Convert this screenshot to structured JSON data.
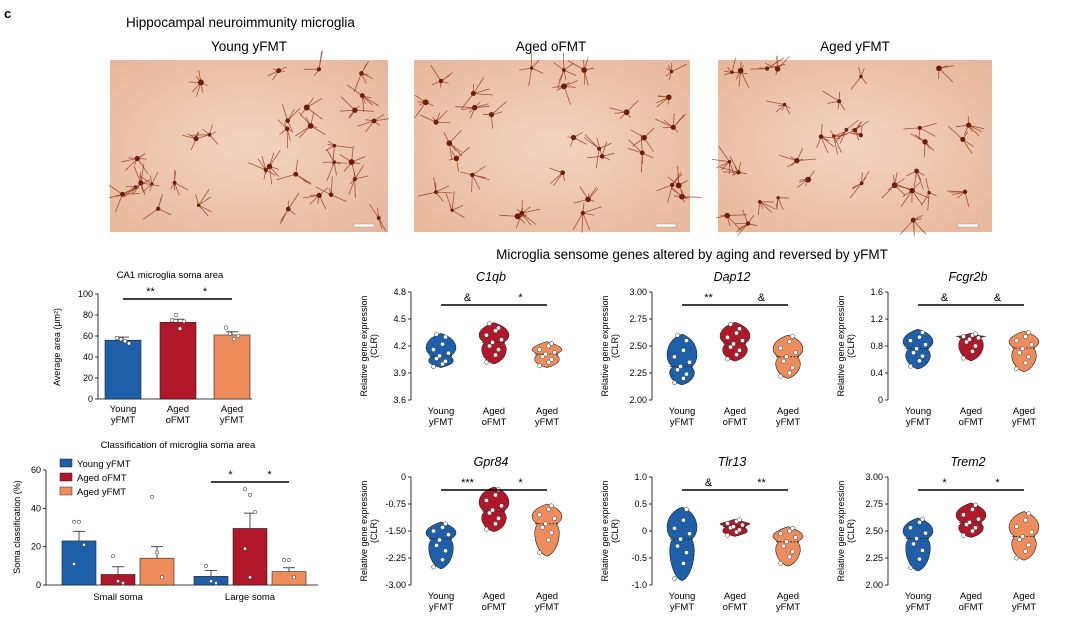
{
  "panel_label": "c",
  "histology": {
    "title": "Hippocampal neuroimmunity microglia",
    "labels": [
      "Young yFMT",
      "Aged oFMT",
      "Aged yFMT"
    ]
  },
  "sensome_title": "Microglia sensome genes altered by aging and reversed by yFMT",
  "colors": {
    "young_yFMT": "#1d5fa8",
    "aged_oFMT": "#b0182a",
    "aged_yFMT": "#ef8c5c"
  },
  "chart_data": [
    {
      "id": "soma_area",
      "type": "bar",
      "title": "CA1 microglia soma area",
      "ylabel": "Average area (μm²)",
      "ylim": [
        0,
        100
      ],
      "yticks": [
        "0",
        "20",
        "40",
        "60",
        "80",
        "100"
      ],
      "categories": [
        "Young yFMT",
        "Aged oFMT",
        "Aged yFMT"
      ],
      "values": [
        56,
        73,
        61
      ],
      "errors": [
        3,
        3,
        3
      ],
      "points": [
        [
          58,
          57,
          55,
          53
        ],
        [
          75,
          80,
          67,
          74
        ],
        [
          68,
          62,
          57,
          60
        ]
      ],
      "significance": [
        {
          "from": 0,
          "to": 1,
          "label": "**"
        },
        {
          "from": 1,
          "to": 2,
          "label": "*"
        }
      ]
    },
    {
      "id": "soma_class",
      "type": "bar",
      "title": "Classification of microglia soma area",
      "ylabel": "Soma classification (%)",
      "ylim": [
        0,
        60
      ],
      "yticks": [
        "0",
        "20",
        "40",
        "60"
      ],
      "groups": [
        "Small soma",
        "Large soma"
      ],
      "legend": [
        "Young yFMT",
        "Aged oFMT",
        "Aged yFMT"
      ],
      "series": [
        {
          "name": "Young yFMT",
          "values": [
            23,
            4.5
          ],
          "errors": [
            5,
            3
          ]
        },
        {
          "name": "Aged oFMT",
          "values": [
            5.5,
            29.5
          ],
          "errors": [
            4,
            8
          ]
        },
        {
          "name": "Aged yFMT",
          "values": [
            14,
            7
          ],
          "errors": [
            6,
            2
          ]
        }
      ],
      "points": [
        [
          [
            33,
            33,
            21,
            11
          ],
          [
            10,
            2,
            1
          ]
        ],
        [
          [
            15,
            2,
            1
          ],
          [
            50,
            47,
            38,
            19,
            4
          ]
        ],
        [
          [
            46,
            17,
            4
          ],
          [
            13,
            13,
            4
          ]
        ]
      ],
      "significance": [
        {
          "group": 1,
          "from": 0,
          "to": 1,
          "label": "*"
        },
        {
          "group": 1,
          "from": 1,
          "to": 2,
          "label": "*"
        }
      ]
    },
    {
      "id": "C1qb",
      "type": "violin",
      "title": "C1qb",
      "ylabel": "Relative gene expression (CLR)",
      "ylim": [
        3.6,
        4.8
      ],
      "yticks": [
        "3.6",
        "3.9",
        "4.2",
        "4.5",
        "4.8"
      ],
      "categories": [
        "Young yFMT",
        "Aged oFMT",
        "Aged yFMT"
      ],
      "series": [
        {
          "name": "Young yFMT",
          "min": 3.96,
          "max": 4.34,
          "median": 4.09,
          "points": [
            3.97,
            4.0,
            4.03,
            4.06,
            4.09,
            4.12,
            4.16,
            4.22,
            4.3,
            4.33
          ]
        },
        {
          "name": "Aged oFMT",
          "min": 4.0,
          "max": 4.46,
          "median": 4.24,
          "points": [
            4.02,
            4.1,
            4.16,
            4.2,
            4.24,
            4.27,
            4.32,
            4.37,
            4.4,
            4.45
          ]
        },
        {
          "name": "Aged yFMT",
          "min": 3.96,
          "max": 4.25,
          "median": 4.11,
          "points": [
            3.98,
            4.02,
            4.05,
            4.08,
            4.11,
            4.13,
            4.16,
            4.2,
            4.23
          ]
        }
      ],
      "significance": [
        {
          "from": 0,
          "to": 1,
          "label": "&"
        },
        {
          "from": 1,
          "to": 2,
          "label": "*"
        }
      ]
    },
    {
      "id": "Dap12",
      "type": "violin",
      "title": "Dap12",
      "ylabel": "Relative gene expression (CLR)",
      "ylim": [
        2.0,
        3.0
      ],
      "yticks": [
        "2.00",
        "2.25",
        "2.50",
        "2.75",
        "3.00"
      ],
      "categories": [
        "Young yFMT",
        "Aged oFMT",
        "Aged yFMT"
      ],
      "series": [
        {
          "name": "Young yFMT",
          "min": 2.14,
          "max": 2.61,
          "median": 2.31,
          "points": [
            2.16,
            2.2,
            2.24,
            2.28,
            2.31,
            2.35,
            2.4,
            2.46,
            2.55,
            2.6
          ]
        },
        {
          "name": "Aged oFMT",
          "min": 2.36,
          "max": 2.72,
          "median": 2.52,
          "points": [
            2.38,
            2.42,
            2.46,
            2.49,
            2.52,
            2.55,
            2.58,
            2.62,
            2.66,
            2.7
          ]
        },
        {
          "name": "Aged yFMT",
          "min": 2.2,
          "max": 2.6,
          "median": 2.4,
          "points": [
            2.22,
            2.25,
            2.3,
            2.36,
            2.4,
            2.44,
            2.48,
            2.54,
            2.59
          ]
        }
      ],
      "significance": [
        {
          "from": 0,
          "to": 1,
          "label": "**"
        },
        {
          "from": 1,
          "to": 2,
          "label": "&"
        }
      ]
    },
    {
      "id": "Fcgr2b",
      "type": "violin",
      "title": "Fcgr2b",
      "ylabel": "Relative gene expression (CLR)",
      "ylim": [
        0,
        1.6
      ],
      "yticks": [
        "0",
        "0.4",
        "0.8",
        "1.2",
        "1.6"
      ],
      "categories": [
        "Young yFMT",
        "Aged oFMT",
        "Aged yFMT"
      ],
      "series": [
        {
          "name": "Young yFMT",
          "min": 0.46,
          "max": 1.05,
          "median": 0.76,
          "points": [
            0.5,
            0.58,
            0.65,
            0.7,
            0.76,
            0.82,
            0.88,
            0.93,
            1.0
          ]
        },
        {
          "name": "Aged oFMT",
          "min": 0.58,
          "max": 0.99,
          "median": 0.92,
          "points": [
            0.62,
            0.72,
            0.8,
            0.86,
            0.9,
            0.92,
            0.94,
            0.96,
            0.98
          ]
        },
        {
          "name": "Aged yFMT",
          "min": 0.42,
          "max": 1.02,
          "median": 0.77,
          "points": [
            0.46,
            0.55,
            0.64,
            0.7,
            0.76,
            0.82,
            0.88,
            0.94,
            1.0
          ]
        }
      ],
      "significance": [
        {
          "from": 0,
          "to": 1,
          "label": "&"
        },
        {
          "from": 1,
          "to": 2,
          "label": "&"
        }
      ]
    },
    {
      "id": "Gpr84",
      "type": "violin",
      "title": "Gpr84",
      "ylabel": "Relative gene expression (CLR)",
      "ylim": [
        -3.0,
        0
      ],
      "yticks": [
        "-3.00",
        "-2.25",
        "-1.50",
        "-0.75",
        "0"
      ],
      "categories": [
        "Young yFMT",
        "Aged oFMT",
        "Aged yFMT"
      ],
      "series": [
        {
          "name": "Young yFMT",
          "min": -2.55,
          "max": -1.25,
          "median": -1.72,
          "points": [
            -2.5,
            -2.3,
            -2.05,
            -1.9,
            -1.75,
            -1.6,
            -1.5,
            -1.4,
            -1.3
          ]
        },
        {
          "name": "Aged oFMT",
          "min": -1.52,
          "max": -0.28,
          "median": -0.95,
          "points": [
            -1.45,
            -1.3,
            -1.15,
            -1.0,
            -0.92,
            -0.8,
            -0.65,
            -0.5,
            -0.35
          ]
        },
        {
          "name": "Aged yFMT",
          "min": -2.2,
          "max": -0.75,
          "median": -1.3,
          "points": [
            -2.1,
            -1.75,
            -1.55,
            -1.4,
            -1.3,
            -1.15,
            -1.05,
            -0.9,
            -0.8
          ]
        }
      ],
      "significance": [
        {
          "from": 0,
          "to": 1,
          "label": "***"
        },
        {
          "from": 1,
          "to": 2,
          "label": "*"
        }
      ]
    },
    {
      "id": "Tlr13",
      "type": "violin",
      "title": "Tlr13",
      "ylabel": "Relative gene expression (CLR)",
      "ylim": [
        -1.0,
        1.0
      ],
      "yticks": [
        "-1.0",
        "-0.5",
        "0",
        "0.5",
        "1.0"
      ],
      "categories": [
        "Young yFMT",
        "Aged oFMT",
        "Aged yFMT"
      ],
      "series": [
        {
          "name": "Young yFMT",
          "min": -0.92,
          "max": 0.44,
          "median": -0.15,
          "points": [
            -0.88,
            -0.6,
            -0.4,
            -0.28,
            -0.15,
            -0.05,
            0.05,
            0.2,
            0.4
          ]
        },
        {
          "name": "Aged oFMT",
          "min": -0.1,
          "max": 0.22,
          "median": 0.08,
          "points": [
            -0.08,
            -0.02,
            0.02,
            0.06,
            0.08,
            0.11,
            0.14,
            0.18,
            0.21
          ]
        },
        {
          "name": "Aged yFMT",
          "min": -0.65,
          "max": 0.08,
          "median": -0.2,
          "points": [
            -0.6,
            -0.48,
            -0.38,
            -0.28,
            -0.2,
            -0.12,
            -0.05,
            0.0,
            0.05
          ]
        }
      ],
      "significance": [
        {
          "from": 0,
          "to": 1,
          "label": "&"
        },
        {
          "from": 1,
          "to": 2,
          "label": "**"
        }
      ]
    },
    {
      "id": "Trem2",
      "type": "violin",
      "title": "Trem2",
      "ylabel": "Relative gene expression (CLR)",
      "ylim": [
        2.0,
        3.0
      ],
      "yticks": [
        "2.00",
        "2.25",
        "2.50",
        "2.75",
        "3.00"
      ],
      "categories": [
        "Young yFMT",
        "Aged oFMT",
        "Aged yFMT"
      ],
      "series": [
        {
          "name": "Young yFMT",
          "min": 2.13,
          "max": 2.62,
          "median": 2.43,
          "points": [
            2.16,
            2.24,
            2.32,
            2.38,
            2.43,
            2.48,
            2.53,
            2.58,
            2.61
          ]
        },
        {
          "name": "Aged oFMT",
          "min": 2.44,
          "max": 2.76,
          "median": 2.58,
          "points": [
            2.46,
            2.5,
            2.53,
            2.56,
            2.58,
            2.61,
            2.65,
            2.7,
            2.74
          ]
        },
        {
          "name": "Aged yFMT",
          "min": 2.23,
          "max": 2.68,
          "median": 2.45,
          "points": [
            2.25,
            2.31,
            2.37,
            2.42,
            2.45,
            2.49,
            2.54,
            2.6,
            2.66
          ]
        }
      ],
      "significance": [
        {
          "from": 0,
          "to": 1,
          "label": "*"
        },
        {
          "from": 1,
          "to": 2,
          "label": "*"
        }
      ]
    }
  ]
}
